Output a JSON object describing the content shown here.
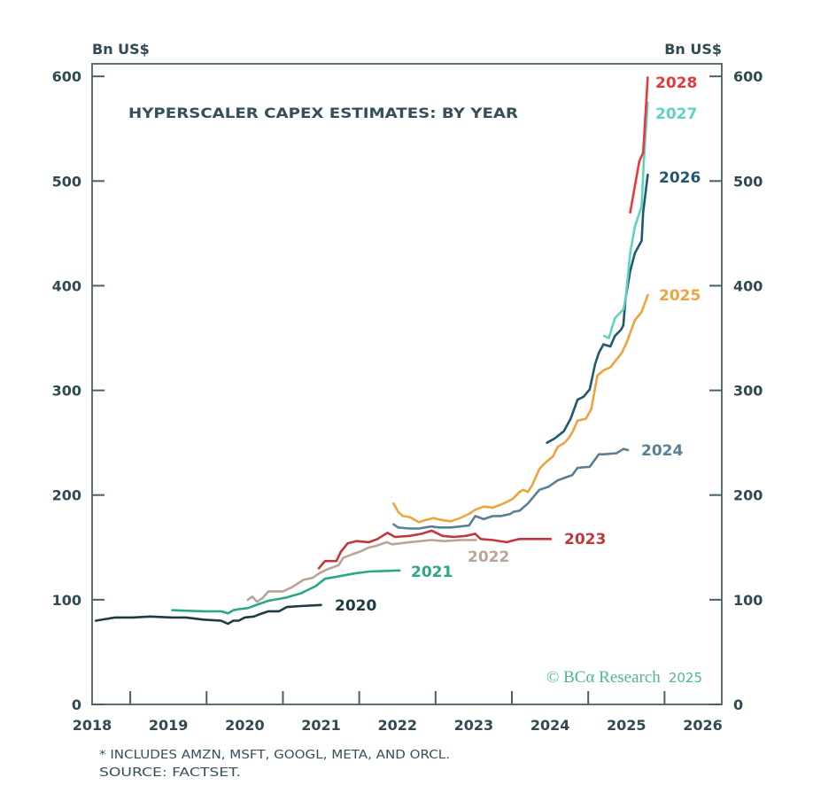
{
  "chart_data": {
    "type": "line",
    "title": "HYPERSCALER CAPEX ESTIMATES: BY YEAR",
    "ylabel_left": "Bn US$",
    "ylabel_right": "Bn US$",
    "xlabel": "",
    "x_ticks": [
      "2018",
      "2019",
      "2020",
      "2021",
      "2022",
      "2023",
      "2024",
      "2025",
      "2026"
    ],
    "y_ticks": [
      "0",
      "100",
      "200",
      "300",
      "400",
      "500",
      "600"
    ],
    "xlim": [
      2018.5,
      2026.75
    ],
    "ylim": [
      0,
      612
    ],
    "grid": false,
    "legend": "inline-labels-at-line-ends",
    "series": [
      {
        "name": "2020",
        "color": "#1f3b42",
        "points": [
          [
            2018.55,
            80
          ],
          [
            2018.8,
            83
          ],
          [
            2019.03,
            83
          ],
          [
            2019.26,
            84
          ],
          [
            2019.55,
            83
          ],
          [
            2019.73,
            83
          ],
          [
            2019.96,
            81
          ],
          [
            2020.19,
            80
          ],
          [
            2020.28,
            77
          ],
          [
            2020.35,
            80
          ],
          [
            2020.42,
            80
          ],
          [
            2020.5,
            83
          ],
          [
            2020.62,
            84
          ],
          [
            2020.69,
            86
          ],
          [
            2020.81,
            89
          ],
          [
            2020.95,
            89
          ],
          [
            2021.05,
            93
          ],
          [
            2021.23,
            94
          ],
          [
            2021.5,
            95
          ]
        ]
      },
      {
        "name": "2021",
        "color": "#2aa784",
        "points": [
          [
            2019.55,
            90
          ],
          [
            2019.96,
            89
          ],
          [
            2020.19,
            89
          ],
          [
            2020.28,
            87
          ],
          [
            2020.35,
            90
          ],
          [
            2020.42,
            91
          ],
          [
            2020.54,
            92
          ],
          [
            2020.69,
            96
          ],
          [
            2020.81,
            99
          ],
          [
            2021.04,
            102
          ],
          [
            2021.23,
            106
          ],
          [
            2021.43,
            113
          ],
          [
            2021.55,
            120
          ],
          [
            2021.78,
            123
          ],
          [
            2021.93,
            125
          ],
          [
            2022.13,
            127
          ],
          [
            2022.53,
            128
          ]
        ]
      },
      {
        "name": "2022",
        "color": "#b9a497",
        "points": [
          [
            2020.54,
            100
          ],
          [
            2020.6,
            103
          ],
          [
            2020.66,
            98
          ],
          [
            2020.74,
            102
          ],
          [
            2020.81,
            108
          ],
          [
            2021.0,
            108
          ],
          [
            2021.12,
            112
          ],
          [
            2021.27,
            119
          ],
          [
            2021.39,
            121
          ],
          [
            2021.47,
            125
          ],
          [
            2021.58,
            129
          ],
          [
            2021.73,
            133
          ],
          [
            2021.79,
            140
          ],
          [
            2021.93,
            144
          ],
          [
            2022.01,
            146
          ],
          [
            2022.13,
            150
          ],
          [
            2022.2,
            151
          ],
          [
            2022.36,
            155
          ],
          [
            2022.43,
            153
          ],
          [
            2022.66,
            155
          ],
          [
            2022.94,
            157
          ],
          [
            2023.12,
            156
          ],
          [
            2023.32,
            157
          ],
          [
            2023.53,
            157
          ]
        ]
      },
      {
        "name": "2023",
        "color": "#c0373d",
        "points": [
          [
            2021.47,
            130
          ],
          [
            2021.55,
            137
          ],
          [
            2021.7,
            137
          ],
          [
            2021.76,
            146
          ],
          [
            2021.85,
            154
          ],
          [
            2021.96,
            156
          ],
          [
            2022.13,
            155
          ],
          [
            2022.24,
            158
          ],
          [
            2022.37,
            164
          ],
          [
            2022.47,
            160
          ],
          [
            2022.66,
            161
          ],
          [
            2022.82,
            163
          ],
          [
            2022.95,
            166
          ],
          [
            2023.09,
            161
          ],
          [
            2023.24,
            160
          ],
          [
            2023.4,
            161
          ],
          [
            2023.52,
            163
          ],
          [
            2023.59,
            158
          ],
          [
            2023.75,
            157
          ],
          [
            2023.93,
            155
          ],
          [
            2024.1,
            158
          ],
          [
            2024.33,
            158
          ],
          [
            2024.51,
            158
          ]
        ]
      },
      {
        "name": "2024",
        "color": "#5a7e94",
        "points": [
          [
            2022.45,
            172
          ],
          [
            2022.51,
            169
          ],
          [
            2022.66,
            168
          ],
          [
            2022.78,
            168
          ],
          [
            2022.94,
            170
          ],
          [
            2023.05,
            169
          ],
          [
            2023.2,
            169
          ],
          [
            2023.32,
            170
          ],
          [
            2023.44,
            171
          ],
          [
            2023.52,
            180
          ],
          [
            2023.63,
            177
          ],
          [
            2023.75,
            180
          ],
          [
            2023.86,
            180
          ],
          [
            2023.98,
            182
          ],
          [
            2024.02,
            184
          ],
          [
            2024.1,
            185
          ],
          [
            2024.21,
            192
          ],
          [
            2024.36,
            205
          ],
          [
            2024.48,
            208
          ],
          [
            2024.6,
            214
          ],
          [
            2024.71,
            217
          ],
          [
            2024.79,
            219
          ],
          [
            2024.86,
            226
          ],
          [
            2025.02,
            227
          ],
          [
            2025.14,
            239
          ],
          [
            2025.21,
            239
          ],
          [
            2025.37,
            240
          ],
          [
            2025.46,
            244
          ],
          [
            2025.52,
            243
          ]
        ]
      },
      {
        "name": "2025",
        "color": "#f0a23e",
        "points": [
          [
            2022.45,
            192
          ],
          [
            2022.51,
            184
          ],
          [
            2022.57,
            180
          ],
          [
            2022.66,
            179
          ],
          [
            2022.78,
            174
          ],
          [
            2022.86,
            176
          ],
          [
            2022.97,
            178
          ],
          [
            2023.09,
            176
          ],
          [
            2023.2,
            175
          ],
          [
            2023.32,
            178
          ],
          [
            2023.44,
            182
          ],
          [
            2023.52,
            186
          ],
          [
            2023.63,
            189
          ],
          [
            2023.75,
            188
          ],
          [
            2023.86,
            191
          ],
          [
            2023.98,
            195
          ],
          [
            2024.02,
            197
          ],
          [
            2024.1,
            203
          ],
          [
            2024.15,
            205
          ],
          [
            2024.21,
            203
          ],
          [
            2024.27,
            210
          ],
          [
            2024.36,
            225
          ],
          [
            2024.44,
            231
          ],
          [
            2024.54,
            237
          ],
          [
            2024.6,
            246
          ],
          [
            2024.69,
            250
          ],
          [
            2024.75,
            255
          ],
          [
            2024.8,
            261
          ],
          [
            2024.86,
            271
          ],
          [
            2024.97,
            273
          ],
          [
            2025.04,
            282
          ],
          [
            2025.12,
            314
          ],
          [
            2025.2,
            319
          ],
          [
            2025.29,
            322
          ],
          [
            2025.41,
            333
          ],
          [
            2025.44,
            336
          ],
          [
            2025.5,
            345
          ],
          [
            2025.61,
            367
          ],
          [
            2025.7,
            375
          ],
          [
            2025.78,
            391
          ]
        ]
      },
      {
        "name": "2026",
        "color": "#22586d",
        "points": [
          [
            2024.46,
            250
          ],
          [
            2024.56,
            254
          ],
          [
            2024.68,
            261
          ],
          [
            2024.77,
            273
          ],
          [
            2024.86,
            291
          ],
          [
            2024.94,
            294
          ],
          [
            2025.02,
            301
          ],
          [
            2025.09,
            325
          ],
          [
            2025.14,
            336
          ],
          [
            2025.2,
            344
          ],
          [
            2025.29,
            342
          ],
          [
            2025.35,
            352
          ],
          [
            2025.43,
            358
          ],
          [
            2025.46,
            362
          ],
          [
            2025.49,
            388
          ],
          [
            2025.55,
            414
          ],
          [
            2025.61,
            431
          ],
          [
            2025.7,
            443
          ],
          [
            2025.72,
            470
          ],
          [
            2025.78,
            506
          ]
        ]
      },
      {
        "name": "2027",
        "color": "#5fd3c1",
        "points": [
          [
            2025.21,
            352
          ],
          [
            2025.27,
            350
          ],
          [
            2025.35,
            369
          ],
          [
            2025.43,
            375
          ],
          [
            2025.46,
            377
          ],
          [
            2025.49,
            388
          ],
          [
            2025.55,
            431
          ],
          [
            2025.61,
            456
          ],
          [
            2025.7,
            476
          ],
          [
            2025.73,
            521
          ],
          [
            2025.78,
            575
          ]
        ]
      },
      {
        "name": "2028",
        "color": "#e8383a",
        "points": [
          [
            2025.55,
            470
          ],
          [
            2025.67,
            519
          ],
          [
            2025.72,
            527
          ],
          [
            2025.78,
            599
          ]
        ]
      }
    ]
  },
  "footnote": "* INCLUDES AMZN, MSFT, GOOGL, META, AND ORCL.",
  "source": "SOURCE: FACTSET.",
  "copyright": {
    "brand": "© BCα Research",
    "year": "2025",
    "color": "#4fb596"
  },
  "text_color": "#2f4a51"
}
